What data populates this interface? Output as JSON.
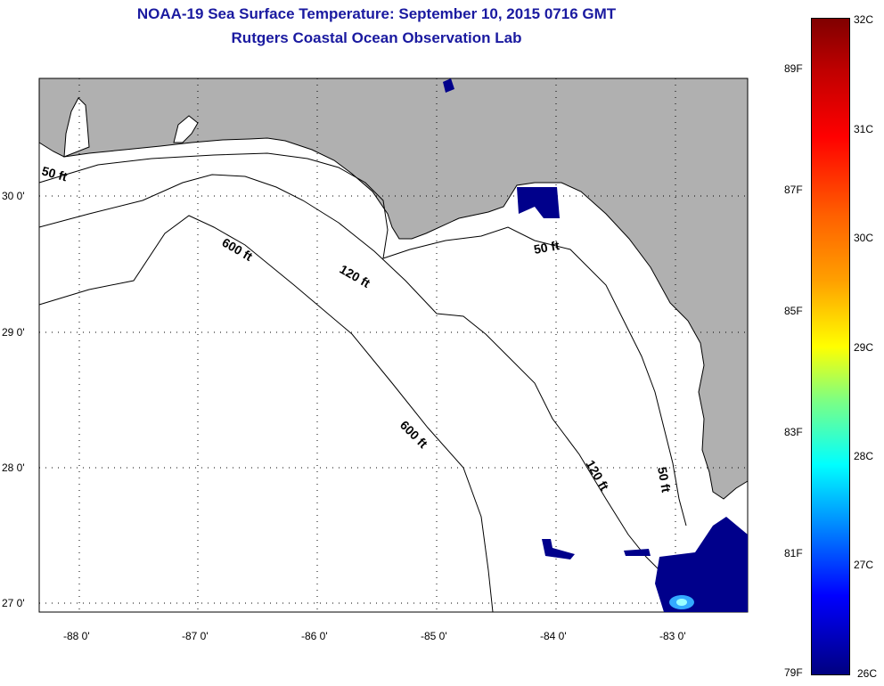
{
  "header": {
    "title": "NOAA-19 Sea Surface Temperature:  September 10, 2015 0716 GMT",
    "subtitle": "Rutgers Coastal Ocean Observation Lab"
  },
  "map": {
    "lat_labels": [
      "30 0'",
      "29 0'",
      "28 0'",
      "27 0'"
    ],
    "lon_labels": [
      "-88 0'",
      "-87 0'",
      "-86 0'",
      "-85 0'",
      "-84 0'",
      "-83 0'"
    ],
    "contours": {
      "c600a": "600 ft",
      "c600b": "600 ft",
      "c120a": "120 ft",
      "c120b": "120 ft",
      "c50a": "50 ft",
      "c50b": "50 ft",
      "c50c": "50 ft"
    }
  },
  "colorbar": {
    "fahrenheit": [
      "89F",
      "87F",
      "85F",
      "83F",
      "81F",
      "79F"
    ],
    "celsius": [
      "32C",
      "31C",
      "30C",
      "29C",
      "28C",
      "27C",
      "26C"
    ]
  },
  "colors": {
    "land": "#b0b0b0",
    "title": "#1a1aa0",
    "cloud": "#00008b"
  }
}
